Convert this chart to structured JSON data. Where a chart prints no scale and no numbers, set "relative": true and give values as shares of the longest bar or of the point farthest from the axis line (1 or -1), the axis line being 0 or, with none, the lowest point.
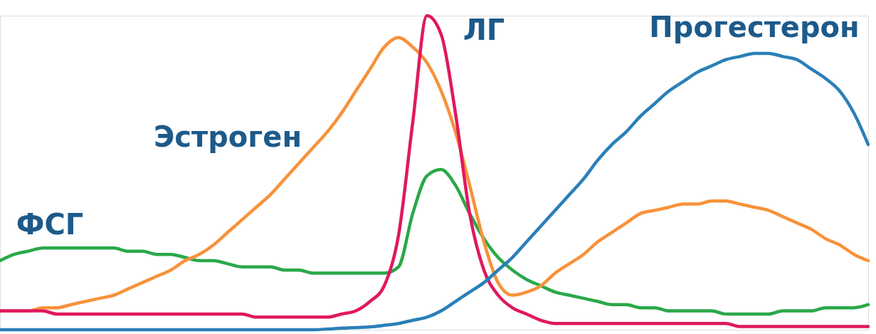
{
  "chart_data": {
    "type": "line",
    "relative": true,
    "tick_labels": false,
    "marker": "none",
    "line_style": "solid",
    "categories": [
      null,
      null,
      null,
      null,
      null,
      null,
      null,
      null,
      null,
      null,
      null,
      null,
      null,
      null,
      null,
      null,
      null,
      null,
      null,
      null,
      null,
      null,
      null,
      null,
      null,
      null,
      null,
      null,
      null,
      null,
      null,
      null,
      null,
      null,
      null,
      null,
      null,
      null,
      null,
      null,
      null,
      null,
      null,
      null,
      null,
      null,
      null,
      null,
      null,
      null,
      null,
      null,
      null,
      null,
      null,
      null,
      null,
      null,
      null,
      null,
      null,
      null
    ],
    "series": [
      {
        "name": "ФСГ",
        "color": "#2aa84a",
        "values": [
          0.22,
          0.24,
          0.25,
          0.26,
          0.26,
          0.26,
          0.26,
          0.26,
          0.26,
          0.25,
          0.25,
          0.24,
          0.24,
          0.23,
          0.22,
          0.22,
          0.21,
          0.2,
          0.2,
          0.2,
          0.19,
          0.19,
          0.18,
          0.18,
          0.18,
          0.18,
          0.18,
          0.18,
          0.2,
          0.37,
          0.49,
          0.51,
          0.46,
          0.37,
          0.29,
          0.23,
          0.19,
          0.16,
          0.14,
          0.12,
          0.11,
          0.1,
          0.09,
          0.08,
          0.08,
          0.07,
          0.07,
          0.06,
          0.06,
          0.06,
          0.06,
          0.05,
          0.05,
          0.05,
          0.05,
          0.06,
          0.06,
          0.06,
          0.07,
          0.07,
          0.07,
          0.08
        ]
      },
      {
        "name": "Эстроген",
        "color": "#f7923a",
        "values": [
          0.06,
          0.06,
          0.06,
          0.07,
          0.07,
          0.08,
          0.09,
          0.1,
          0.11,
          0.13,
          0.15,
          0.17,
          0.19,
          0.22,
          0.24,
          0.27,
          0.31,
          0.35,
          0.39,
          0.43,
          0.48,
          0.53,
          0.58,
          0.63,
          0.69,
          0.76,
          0.83,
          0.9,
          0.93,
          0.9,
          0.85,
          0.76,
          0.63,
          0.46,
          0.28,
          0.15,
          0.11,
          0.12,
          0.14,
          0.18,
          0.21,
          0.24,
          0.28,
          0.31,
          0.34,
          0.37,
          0.38,
          0.39,
          0.4,
          0.4,
          0.41,
          0.41,
          0.4,
          0.39,
          0.38,
          0.36,
          0.34,
          0.32,
          0.29,
          0.27,
          0.24,
          0.22
        ]
      },
      {
        "name": "ЛГ",
        "color": "#e0195e",
        "values": [
          0.06,
          0.06,
          0.06,
          0.06,
          0.05,
          0.05,
          0.05,
          0.05,
          0.05,
          0.05,
          0.05,
          0.05,
          0.05,
          0.05,
          0.05,
          0.05,
          0.05,
          0.05,
          0.04,
          0.04,
          0.04,
          0.04,
          0.04,
          0.04,
          0.05,
          0.06,
          0.09,
          0.14,
          0.3,
          0.66,
          1.0,
          0.94,
          0.69,
          0.37,
          0.19,
          0.11,
          0.07,
          0.05,
          0.03,
          0.02,
          0.02,
          0.02,
          0.02,
          0.02,
          0.02,
          0.02,
          0.02,
          0.02,
          0.02,
          0.02,
          0.02,
          0.02,
          0.01,
          0.01,
          0.01,
          0.01,
          0.01,
          0.01,
          0.01,
          0.01,
          0.01,
          0.01
        ]
      },
      {
        "name": "Прогестерон",
        "color": "#2a7fb8",
        "values": [
          0,
          0,
          0,
          0,
          0,
          0,
          0,
          0,
          0,
          0,
          0,
          0,
          0,
          0,
          0,
          0,
          0,
          0,
          0,
          0,
          0,
          0,
          0,
          0.002,
          0.005,
          0.007,
          0.009,
          0.014,
          0.02,
          0.03,
          0.04,
          0.06,
          0.09,
          0.12,
          0.15,
          0.19,
          0.23,
          0.28,
          0.33,
          0.38,
          0.43,
          0.48,
          0.54,
          0.59,
          0.63,
          0.68,
          0.72,
          0.76,
          0.79,
          0.82,
          0.84,
          0.86,
          0.87,
          0.88,
          0.88,
          0.87,
          0.86,
          0.83,
          0.8,
          0.76,
          0.69,
          0.59
        ]
      }
    ]
  }
}
